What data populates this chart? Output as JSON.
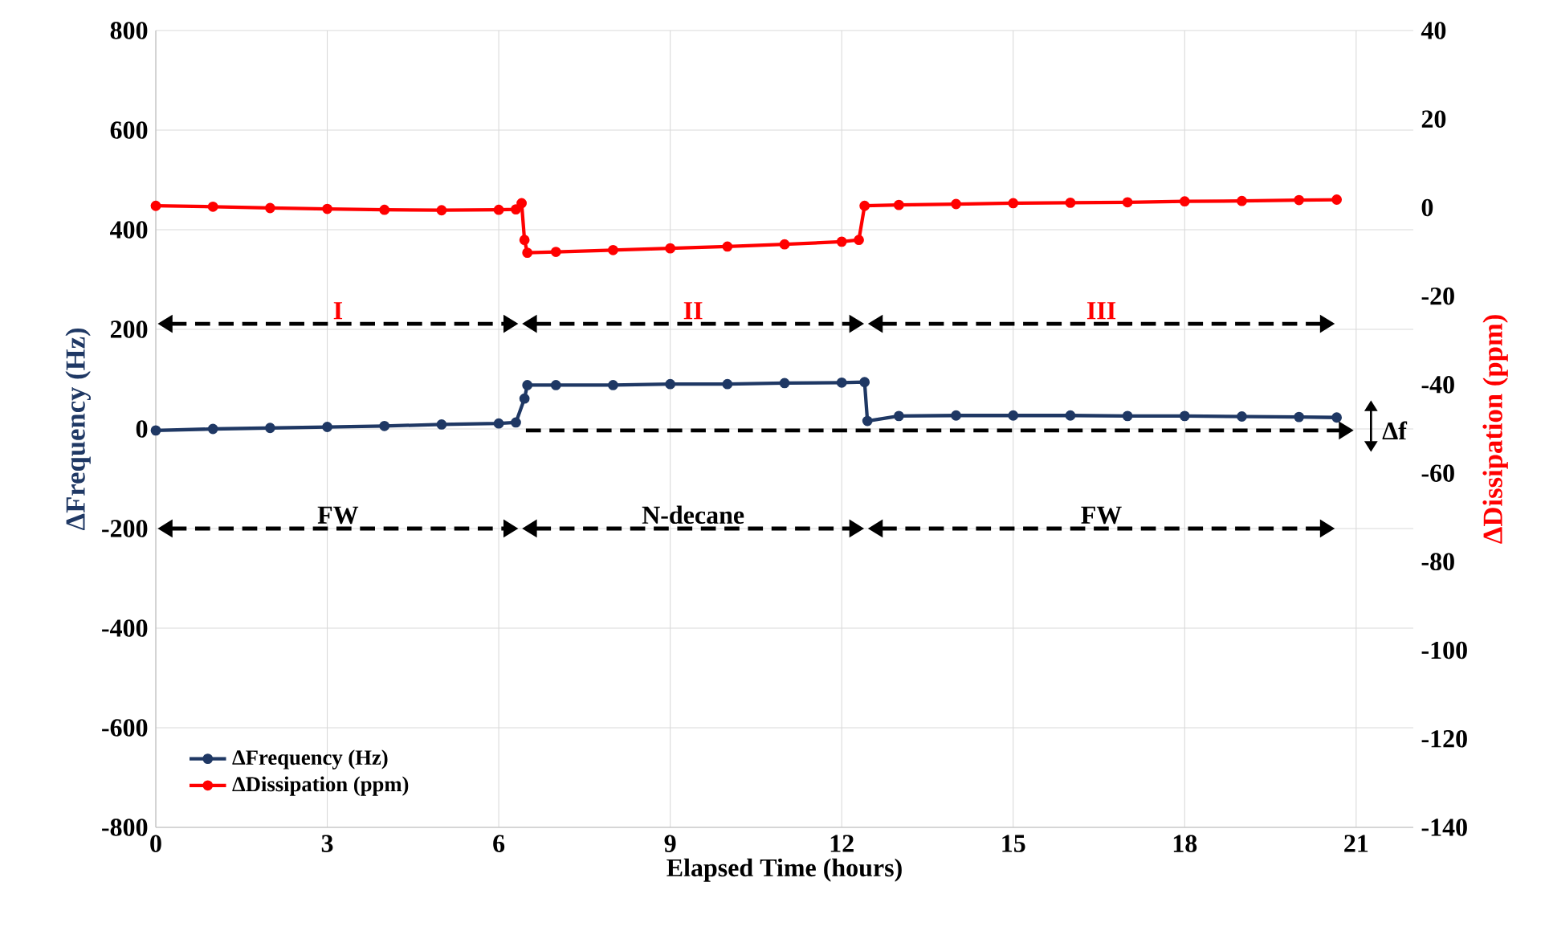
{
  "chart_data": {
    "type": "line",
    "xlabel": "Elapsed Time (hours)",
    "ylabel": "ΔFrequency (Hz)",
    "y2label": "ΔDissipation (ppm)",
    "xlim": [
      0,
      22
    ],
    "xticks": [
      0,
      3,
      6,
      9,
      12,
      15,
      18,
      21
    ],
    "ylim": [
      -800,
      800
    ],
    "yticks": [
      -800,
      -600,
      -400,
      -200,
      0,
      200,
      400,
      600,
      800
    ],
    "y2lim": [
      -140,
      40
    ],
    "y2ticks": [
      -140,
      -120,
      -100,
      -80,
      -60,
      -40,
      -20,
      0,
      20,
      40
    ],
    "grid": true,
    "legend": "bottom left",
    "marker": "circle",
    "line_style": "solid",
    "series": [
      {
        "name": "ΔFrequency (Hz)",
        "color": "#1f3864",
        "x": [
          0,
          1,
          2,
          3,
          4,
          5,
          6,
          6.3,
          6.45,
          6.5,
          7,
          8,
          9,
          10,
          11,
          12,
          12.4,
          12.45,
          13,
          14,
          15,
          16,
          17,
          18,
          19,
          20,
          20.66
        ],
        "values": [
          -3,
          0,
          2,
          4,
          6,
          9,
          11,
          13,
          61,
          88,
          88,
          88,
          90,
          90,
          92,
          93,
          94,
          16,
          26,
          27,
          27,
          27,
          26,
          26,
          25,
          24,
          23
        ]
      },
      {
        "name": "ΔDissipation (ppm)",
        "color": "#ff0000",
        "axis": "y2",
        "x": [
          0,
          1,
          2,
          3,
          4,
          5,
          6,
          6.3,
          6.4,
          6.45,
          6.5,
          7,
          8,
          9,
          10,
          11,
          12,
          12.3,
          12.4,
          13,
          14,
          15,
          16,
          17,
          18,
          19,
          20,
          20.66
        ],
        "values": [
          0.4,
          0.2,
          -0.1,
          -0.3,
          -0.5,
          -0.6,
          -0.5,
          -0.4,
          1,
          -7.3,
          -10.2,
          -10,
          -9.6,
          -9.2,
          -8.8,
          -8.3,
          -7.7,
          -7.3,
          0.4,
          0.6,
          0.8,
          1,
          1.1,
          1.2,
          1.4,
          1.5,
          1.7,
          1.8
        ]
      }
    ],
    "annotations": [
      "I",
      "II",
      "III",
      "FW",
      "N-decane",
      "FW",
      "Δf"
    ]
  }
}
